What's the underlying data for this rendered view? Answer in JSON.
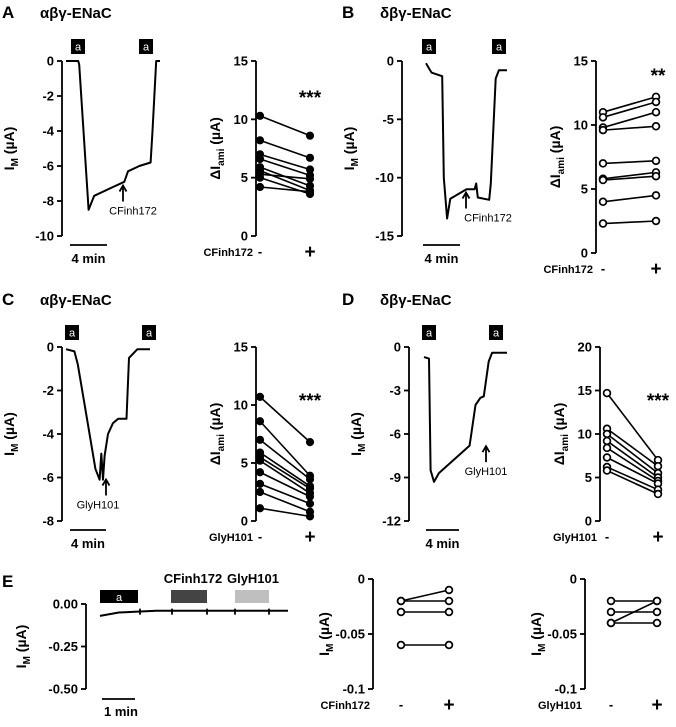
{
  "panels": {
    "A": {
      "letter": "A",
      "title": "αβγ-ENaC"
    },
    "B": {
      "letter": "B",
      "title": "δβγ-ENaC"
    },
    "C": {
      "letter": "C",
      "title": "αβγ-ENaC"
    },
    "D": {
      "letter": "D",
      "title": "δβγ-ENaC"
    },
    "E": {
      "letter": "E"
    }
  },
  "labels": {
    "amiloride_box": "a",
    "scale_4min": "4 min",
    "scale_1min": "1 min",
    "cfinh": "CFinh172",
    "glyh": "GlyH101",
    "minus": "-",
    "plus": "+",
    "im_base": "I",
    "im_sub": "M",
    "ua": " (µA)",
    "dI": "ΔI",
    "ami_sub": "ami"
  },
  "chart_data": [
    {
      "id": "A-trace",
      "type": "line",
      "title": "αβγ-ENaC",
      "ylabel": "IM (µA)",
      "ylim": [
        -10,
        0
      ],
      "yticks": [
        0,
        -2,
        -4,
        -6,
        -8,
        -10
      ],
      "annotation": "CFinh172",
      "scale_bar": "4 min",
      "amiloride_marks": [
        "a",
        "a"
      ],
      "x": [
        0,
        0.13,
        0.14,
        0.24,
        0.3,
        0.5,
        0.62,
        0.66,
        0.78,
        0.9,
        0.92,
        0.96,
        1.0
      ],
      "y": [
        0,
        0,
        -0.2,
        -8.5,
        -7.7,
        -7.2,
        -6.9,
        -6.3,
        -6.0,
        -5.8,
        -4.0,
        0,
        0
      ]
    },
    {
      "id": "A-pairs",
      "type": "line",
      "title": "",
      "xlabel": "CFinh172",
      "ylabel": "ΔIami (µA)",
      "categories": [
        "-",
        "+"
      ],
      "ylim": [
        0,
        15
      ],
      "yticks": [
        0,
        5,
        10,
        15
      ],
      "significance": "***",
      "marker": "filled",
      "series": [
        {
          "values": [
            10.3,
            8.6
          ]
        },
        {
          "values": [
            8.2,
            6.7
          ]
        },
        {
          "values": [
            7.0,
            5.7
          ]
        },
        {
          "values": [
            6.6,
            5.2
          ]
        },
        {
          "values": [
            5.9,
            4.3
          ]
        },
        {
          "values": [
            5.6,
            3.9
          ]
        },
        {
          "values": [
            5.3,
            4.9
          ]
        },
        {
          "values": [
            5.0,
            3.6
          ]
        },
        {
          "values": [
            4.2,
            3.8
          ]
        }
      ]
    },
    {
      "id": "B-trace",
      "type": "line",
      "title": "δβγ-ENaC",
      "ylabel": "IM (µA)",
      "ylim": [
        -15,
        0
      ],
      "yticks": [
        0,
        -5,
        -10,
        -15
      ],
      "annotation": "CFinh172",
      "scale_bar": "4 min",
      "amiloride_marks": [
        "a",
        "a"
      ],
      "x": [
        0,
        0.05,
        0.07,
        0.2,
        0.22,
        0.26,
        0.3,
        0.5,
        0.6,
        0.62,
        0.64,
        0.78,
        0.8,
        0.86,
        0.9,
        1.0
      ],
      "y": [
        -0.2,
        -0.8,
        -1.0,
        -1.3,
        -10.0,
        -13.5,
        -11.8,
        -11.0,
        -11.0,
        -10.5,
        -11.7,
        -11.9,
        -10.5,
        -1.5,
        -0.8,
        -0.8
      ]
    },
    {
      "id": "B-pairs",
      "type": "line",
      "title": "",
      "xlabel": "CFinh172",
      "ylabel": "ΔIami (µA)",
      "categories": [
        "-",
        "+"
      ],
      "ylim": [
        0,
        15
      ],
      "yticks": [
        0,
        5,
        10,
        15
      ],
      "significance": "**",
      "marker": "open",
      "series": [
        {
          "values": [
            11.0,
            12.2
          ]
        },
        {
          "values": [
            10.6,
            11.8
          ]
        },
        {
          "values": [
            9.8,
            11.0
          ]
        },
        {
          "values": [
            9.6,
            9.9
          ]
        },
        {
          "values": [
            7.0,
            7.2
          ]
        },
        {
          "values": [
            5.8,
            6.3
          ]
        },
        {
          "values": [
            5.7,
            6.0
          ]
        },
        {
          "values": [
            4.0,
            4.5
          ]
        },
        {
          "values": [
            2.3,
            2.5
          ]
        }
      ]
    },
    {
      "id": "C-trace",
      "type": "line",
      "title": "αβγ-ENaC",
      "ylabel": "IM (µA)",
      "ylim": [
        -8,
        0
      ],
      "yticks": [
        0,
        -2,
        -4,
        -6,
        -8
      ],
      "annotation": "GlyH101",
      "scale_bar": "4 min",
      "amiloride_marks": [
        "a",
        "a"
      ],
      "x": [
        0,
        0.1,
        0.14,
        0.25,
        0.35,
        0.4,
        0.42,
        0.44,
        0.46,
        0.5,
        0.56,
        0.62,
        0.72,
        0.75,
        0.85,
        1.0
      ],
      "y": [
        -0.1,
        -0.2,
        -0.8,
        -3.3,
        -5.6,
        -6.1,
        -4.9,
        -6.1,
        -5.0,
        -4.0,
        -3.5,
        -3.3,
        -3.3,
        -0.5,
        -0.1,
        -0.1
      ]
    },
    {
      "id": "C-pairs",
      "type": "line",
      "title": "",
      "xlabel": "GlyH101",
      "ylabel": "ΔIami (µA)",
      "categories": [
        "-",
        "+"
      ],
      "ylim": [
        0,
        15
      ],
      "yticks": [
        0,
        5,
        10,
        15
      ],
      "significance": "***",
      "marker": "filled",
      "series": [
        {
          "values": [
            10.7,
            6.8
          ]
        },
        {
          "values": [
            8.6,
            3.9
          ]
        },
        {
          "values": [
            7.0,
            3.6
          ]
        },
        {
          "values": [
            5.9,
            3.0
          ]
        },
        {
          "values": [
            5.5,
            2.8
          ]
        },
        {
          "values": [
            5.2,
            2.4
          ]
        },
        {
          "values": [
            4.2,
            2.1
          ]
        },
        {
          "values": [
            3.2,
            1.5
          ]
        },
        {
          "values": [
            2.5,
            0.8
          ]
        },
        {
          "values": [
            1.1,
            0.4
          ]
        }
      ]
    },
    {
      "id": "D-trace",
      "type": "line",
      "title": "δβγ-ENaC",
      "ylabel": "IM (µA)",
      "ylim": [
        -12,
        0
      ],
      "yticks": [
        0,
        -3,
        -6,
        -9,
        -12
      ],
      "annotation": "GlyH101",
      "scale_bar": "4 min",
      "amiloride_marks": [
        "a",
        "a"
      ],
      "x": [
        0,
        0.06,
        0.08,
        0.12,
        0.18,
        0.55,
        0.62,
        0.68,
        0.72,
        0.78,
        0.82,
        1.0
      ],
      "y": [
        -0.7,
        -0.8,
        -8.5,
        -9.3,
        -8.7,
        -6.8,
        -4.0,
        -3.5,
        -3.4,
        -1.0,
        -0.4,
        -0.4
      ]
    },
    {
      "id": "D-pairs",
      "type": "line",
      "title": "",
      "xlabel": "GlyH101",
      "ylabel": "ΔIami (µA)",
      "categories": [
        "-",
        "+"
      ],
      "ylim": [
        0,
        20
      ],
      "yticks": [
        0,
        5,
        10,
        15,
        20
      ],
      "significance": "***",
      "marker": "open",
      "series": [
        {
          "values": [
            14.7,
            7.0
          ]
        },
        {
          "values": [
            10.6,
            6.3
          ]
        },
        {
          "values": [
            10.0,
            5.5
          ]
        },
        {
          "values": [
            9.2,
            5.0
          ]
        },
        {
          "values": [
            8.4,
            4.6
          ]
        },
        {
          "values": [
            7.3,
            4.3
          ]
        },
        {
          "values": [
            6.2,
            3.6
          ]
        },
        {
          "values": [
            5.8,
            3.1
          ]
        }
      ]
    },
    {
      "id": "E-trace",
      "type": "line",
      "title": "",
      "ylabel": "IM (µA)",
      "ylim": [
        -0.5,
        0
      ],
      "yticks": [
        "0.00",
        "-0.25",
        "-0.50"
      ],
      "scale_bar": "1 min",
      "bars": [
        {
          "label": "a",
          "color": "#000000"
        },
        {
          "label": "CFinh172",
          "color": "#444444"
        },
        {
          "label": "GlyH101",
          "color": "#bfbfbf"
        }
      ],
      "x": [
        0,
        0.1,
        0.3,
        0.6,
        1.0
      ],
      "y": [
        -0.07,
        -0.05,
        -0.04,
        -0.04,
        -0.04
      ]
    },
    {
      "id": "E-pairs-cfinh",
      "type": "line",
      "title": "",
      "xlabel": "CFinh172",
      "ylabel": "IM (µA)",
      "categories": [
        "-",
        "+"
      ],
      "ylim": [
        -0.1,
        0
      ],
      "yticks": [
        "0",
        "-0.05",
        "-0.1"
      ],
      "marker": "open",
      "series": [
        {
          "values": [
            -0.02,
            -0.01
          ]
        },
        {
          "values": [
            -0.02,
            -0.02
          ]
        },
        {
          "values": [
            -0.03,
            -0.03
          ]
        },
        {
          "values": [
            -0.06,
            -0.06
          ]
        }
      ]
    },
    {
      "id": "E-pairs-glyh",
      "type": "line",
      "title": "",
      "xlabel": "GlyH101",
      "ylabel": "IM (µA)",
      "categories": [
        "-",
        "+"
      ],
      "ylim": [
        -0.1,
        0
      ],
      "yticks": [
        "0",
        "-0.05",
        "-0.1"
      ],
      "marker": "open",
      "series": [
        {
          "values": [
            -0.02,
            -0.02
          ]
        },
        {
          "values": [
            -0.03,
            -0.03
          ]
        },
        {
          "values": [
            -0.04,
            -0.02
          ]
        },
        {
          "values": [
            -0.04,
            -0.04
          ]
        }
      ]
    }
  ]
}
